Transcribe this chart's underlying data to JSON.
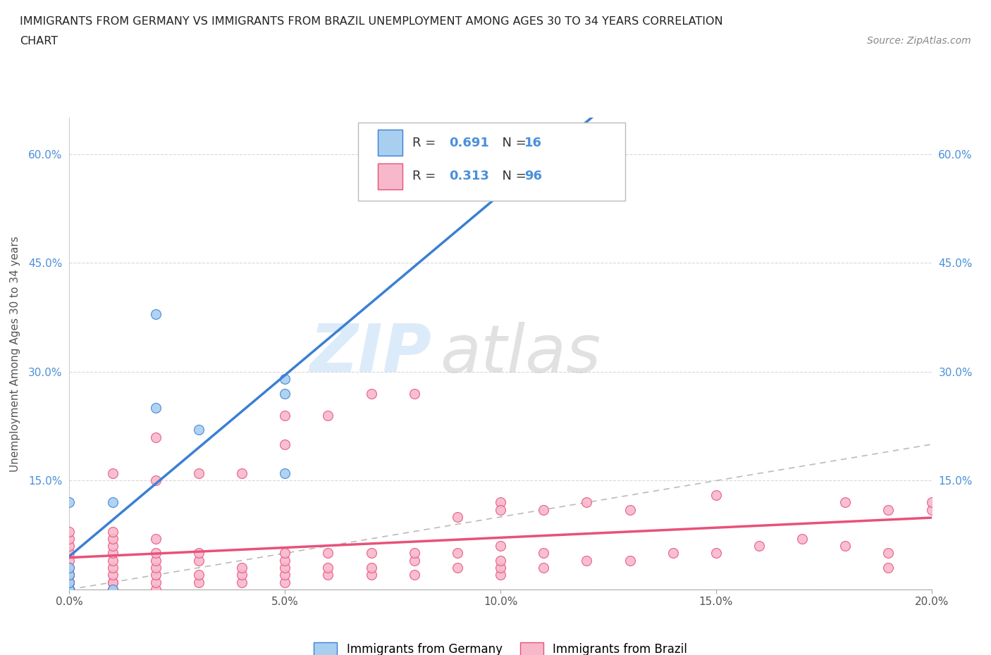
{
  "title_line1": "IMMIGRANTS FROM GERMANY VS IMMIGRANTS FROM BRAZIL UNEMPLOYMENT AMONG AGES 30 TO 34 YEARS CORRELATION",
  "title_line2": "CHART",
  "source_text": "Source: ZipAtlas.com",
  "ylabel": "Unemployment Among Ages 30 to 34 years",
  "xlim": [
    0.0,
    0.2
  ],
  "ylim": [
    0.0,
    0.65
  ],
  "xticks": [
    0.0,
    0.05,
    0.1,
    0.15,
    0.2
  ],
  "xticklabels": [
    "0.0%",
    "5.0%",
    "10.0%",
    "15.0%",
    "20.0%"
  ],
  "yticks": [
    0.0,
    0.15,
    0.3,
    0.45,
    0.6
  ],
  "yticklabels": [
    "",
    "15.0%",
    "30.0%",
    "45.0%",
    "60.0%"
  ],
  "germany_color": "#a8cff0",
  "brazil_color": "#f7b8cc",
  "germany_line_color": "#3a7fd4",
  "brazil_line_color": "#e8517a",
  "diagonal_color": "#bbbbbb",
  "R_germany": 0.691,
  "N_germany": 16,
  "R_brazil": 0.313,
  "N_brazil": 96,
  "watermark_zip": "ZIP",
  "watermark_atlas": "atlas",
  "legend_label_germany": "Immigrants from Germany",
  "legend_label_brazil": "Immigrants from Brazil",
  "germany_x": [
    0.0,
    0.0,
    0.0,
    0.0,
    0.0,
    0.0,
    0.0,
    0.01,
    0.01,
    0.02,
    0.02,
    0.03,
    0.05,
    0.05,
    0.05,
    0.1
  ],
  "germany_y": [
    0.0,
    0.0,
    0.0,
    0.01,
    0.02,
    0.03,
    0.12,
    0.0,
    0.12,
    0.25,
    0.38,
    0.22,
    0.16,
    0.27,
    0.29,
    0.56
  ],
  "brazil_x": [
    0.0,
    0.0,
    0.0,
    0.0,
    0.0,
    0.0,
    0.0,
    0.0,
    0.0,
    0.0,
    0.0,
    0.0,
    0.0,
    0.0,
    0.0,
    0.0,
    0.0,
    0.0,
    0.0,
    0.0,
    0.01,
    0.01,
    0.01,
    0.01,
    0.01,
    0.01,
    0.01,
    0.01,
    0.01,
    0.01,
    0.01,
    0.02,
    0.02,
    0.02,
    0.02,
    0.02,
    0.02,
    0.02,
    0.02,
    0.02,
    0.03,
    0.03,
    0.03,
    0.03,
    0.03,
    0.04,
    0.04,
    0.04,
    0.04,
    0.05,
    0.05,
    0.05,
    0.05,
    0.05,
    0.05,
    0.05,
    0.06,
    0.06,
    0.06,
    0.06,
    0.07,
    0.07,
    0.07,
    0.07,
    0.08,
    0.08,
    0.08,
    0.08,
    0.09,
    0.09,
    0.09,
    0.1,
    0.1,
    0.1,
    0.1,
    0.1,
    0.1,
    0.11,
    0.11,
    0.11,
    0.12,
    0.12,
    0.13,
    0.13,
    0.14,
    0.15,
    0.15,
    0.16,
    0.17,
    0.18,
    0.18,
    0.19,
    0.19,
    0.19,
    0.2,
    0.2
  ],
  "brazil_y": [
    0.0,
    0.0,
    0.0,
    0.0,
    0.0,
    0.0,
    0.01,
    0.01,
    0.02,
    0.02,
    0.03,
    0.04,
    0.05,
    0.06,
    0.07,
    0.08,
    0.02,
    0.01,
    0.01,
    0.02,
    0.0,
    0.01,
    0.01,
    0.02,
    0.03,
    0.04,
    0.05,
    0.06,
    0.07,
    0.08,
    0.16,
    0.0,
    0.01,
    0.02,
    0.03,
    0.04,
    0.05,
    0.07,
    0.15,
    0.21,
    0.01,
    0.02,
    0.04,
    0.05,
    0.16,
    0.01,
    0.02,
    0.03,
    0.16,
    0.01,
    0.02,
    0.03,
    0.04,
    0.05,
    0.2,
    0.24,
    0.02,
    0.03,
    0.05,
    0.24,
    0.02,
    0.03,
    0.05,
    0.27,
    0.02,
    0.04,
    0.05,
    0.27,
    0.03,
    0.05,
    0.1,
    0.02,
    0.03,
    0.04,
    0.06,
    0.12,
    0.11,
    0.03,
    0.05,
    0.11,
    0.04,
    0.12,
    0.04,
    0.11,
    0.05,
    0.05,
    0.13,
    0.06,
    0.07,
    0.06,
    0.12,
    0.03,
    0.05,
    0.11,
    0.11,
    0.12
  ]
}
